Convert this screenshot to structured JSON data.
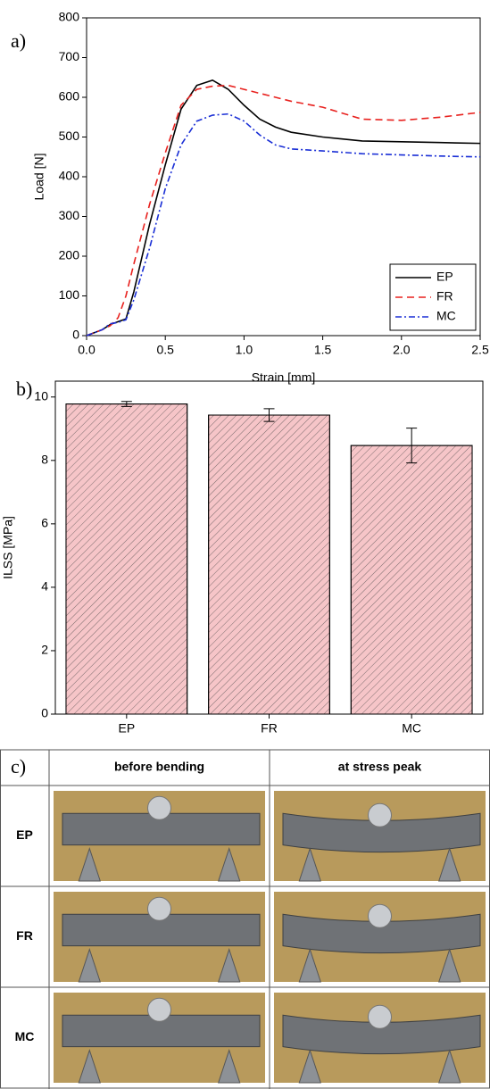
{
  "chart_data": [
    {
      "type": "line",
      "panel_label": "a)",
      "xlabel": "Strain [mm]",
      "ylabel": "Load [N]",
      "x": [
        0,
        0.1,
        0.15,
        0.2,
        0.25,
        0.3,
        0.4,
        0.5,
        0.6,
        0.7,
        0.8,
        0.9,
        1.0,
        1.1,
        1.2,
        1.3,
        1.5,
        1.75,
        2.0,
        2.25,
        2.5
      ],
      "series": [
        {
          "name": "EP",
          "color": "#000000",
          "dash": "solid",
          "values": [
            0,
            15,
            28,
            35,
            42,
            110,
            280,
            430,
            570,
            630,
            643,
            620,
            580,
            545,
            525,
            512,
            500,
            490,
            488,
            486,
            484
          ]
        },
        {
          "name": "FR",
          "color": "#e8211e",
          "dash": "dashed",
          "values": [
            0,
            15,
            25,
            45,
            100,
            180,
            330,
            460,
            580,
            620,
            628,
            630,
            620,
            610,
            600,
            590,
            575,
            545,
            542,
            550,
            562
          ]
        },
        {
          "name": "MC",
          "color": "#1a2fd6",
          "dash": "dashdot",
          "values": [
            0,
            15,
            30,
            33,
            40,
            90,
            220,
            370,
            480,
            540,
            555,
            558,
            540,
            505,
            480,
            470,
            465,
            458,
            455,
            452,
            450
          ]
        }
      ],
      "xlim": [
        0,
        2.5
      ],
      "ylim": [
        0,
        800
      ],
      "xticks": [
        {
          "value": 0,
          "label": "0.0"
        },
        0.5,
        {
          "value": 1,
          "label": "1.0"
        },
        1.5,
        {
          "value": 2,
          "label": "2.0"
        },
        2.5
      ],
      "yticks": [
        0,
        100,
        200,
        300,
        400,
        500,
        600,
        700,
        800
      ],
      "legend": "lower right"
    },
    {
      "type": "bar",
      "panel_label": "b)",
      "ylabel": "ILSS [MPa]",
      "categories": [
        "EP",
        "FR",
        "MC"
      ],
      "values": [
        9.78,
        9.43,
        8.47
      ],
      "errors": [
        0.08,
        0.2,
        0.55
      ],
      "color": "#f6c5c8",
      "hatch": true,
      "ylim": [
        0,
        10.5
      ],
      "yticks": [
        0,
        2,
        4,
        6,
        8,
        10
      ]
    }
  ],
  "table": {
    "panel_label": "c)",
    "columns": [
      "before bending",
      "at stress peak"
    ],
    "rows": [
      "EP",
      "FR",
      "MC"
    ]
  }
}
